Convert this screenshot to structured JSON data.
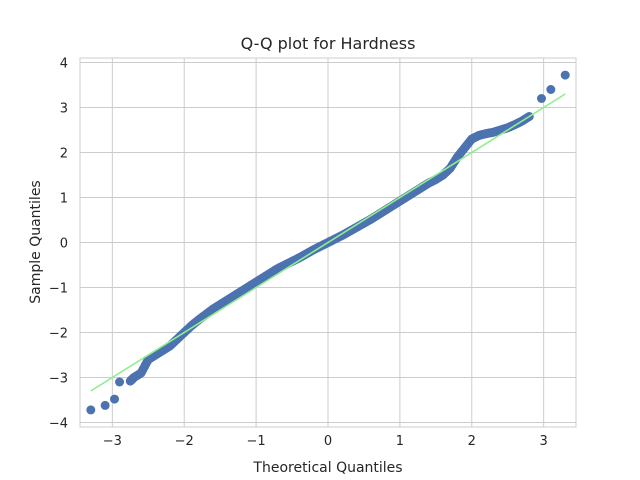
{
  "chart_data": {
    "type": "scatter",
    "title": "Q-Q plot for Hardness",
    "xlabel": "Theoretical Quantiles",
    "ylabel": "Sample Quantiles",
    "xlim": [
      -3.45,
      3.45
    ],
    "ylim": [
      -4.1,
      4.1
    ],
    "xticks": [
      -3,
      -2,
      -1,
      0,
      1,
      2,
      3
    ],
    "xtick_labels": [
      "−3",
      "−2",
      "−1",
      "0",
      "1",
      "2",
      "3"
    ],
    "yticks": [
      -4,
      -3,
      -2,
      -1,
      0,
      1,
      2,
      3,
      4
    ],
    "ytick_labels": [
      "−4",
      "−3",
      "−2",
      "−1",
      "0",
      "1",
      "2",
      "3",
      "4"
    ],
    "grid": true,
    "legend": "none",
    "series": [
      {
        "kind": "points",
        "color": "#4c72b0",
        "x": [
          -3.3,
          -3.1,
          -2.97,
          -2.9,
          -2.75,
          -2.7,
          -2.6,
          -2.5,
          -2.4,
          -2.3,
          -2.2,
          -2.1,
          -2.0,
          -1.9,
          -1.8,
          -1.7,
          -1.6,
          -1.5,
          -1.4,
          -1.3,
          -1.2,
          -1.1,
          -1.0,
          -0.9,
          -0.8,
          -0.7,
          -0.6,
          -0.5,
          -0.4,
          -0.3,
          -0.2,
          -0.1,
          0.0,
          0.1,
          0.2,
          0.3,
          0.4,
          0.5,
          0.6,
          0.7,
          0.8,
          0.9,
          1.0,
          1.1,
          1.2,
          1.3,
          1.4,
          1.5,
          1.6,
          1.7,
          1.8,
          1.9,
          2.0,
          2.1,
          2.2,
          2.3,
          2.4,
          2.5,
          2.6,
          2.7,
          2.8,
          2.97,
          3.1,
          3.3
        ],
        "y": [
          -3.72,
          -3.62,
          -3.48,
          -3.1,
          -3.08,
          -3.0,
          -2.9,
          -2.6,
          -2.5,
          -2.4,
          -2.3,
          -2.15,
          -2.0,
          -1.85,
          -1.72,
          -1.6,
          -1.48,
          -1.38,
          -1.28,
          -1.18,
          -1.08,
          -0.98,
          -0.88,
          -0.78,
          -0.68,
          -0.58,
          -0.5,
          -0.42,
          -0.34,
          -0.25,
          -0.16,
          -0.08,
          0.0,
          0.08,
          0.16,
          0.25,
          0.34,
          0.43,
          0.52,
          0.62,
          0.72,
          0.82,
          0.92,
          1.02,
          1.12,
          1.22,
          1.32,
          1.4,
          1.5,
          1.65,
          1.9,
          2.1,
          2.3,
          2.38,
          2.42,
          2.45,
          2.5,
          2.55,
          2.62,
          2.7,
          2.8,
          3.2,
          3.4,
          3.72
        ]
      },
      {
        "kind": "line",
        "color": "#90ee90",
        "x": [
          -3.3,
          3.3
        ],
        "y": [
          -3.3,
          3.3
        ]
      }
    ]
  }
}
